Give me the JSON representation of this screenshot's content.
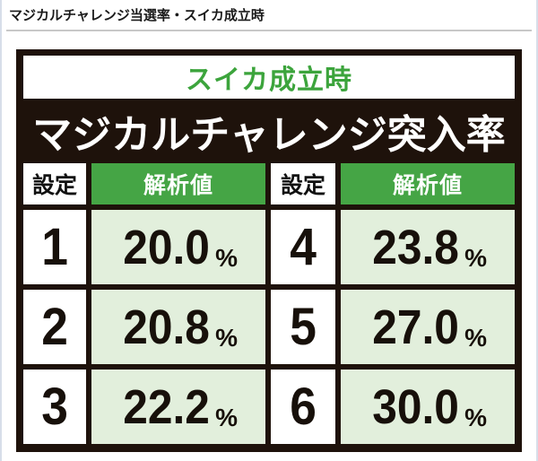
{
  "page": {
    "heading": "マジカルチャレンジ当選率・スイカ成立時"
  },
  "board": {
    "subtitle": "スイカ成立時",
    "title": "マジカルチャレンジ突入率",
    "headers": {
      "setting": "設定",
      "value": "解析値"
    },
    "unit": "%",
    "rows": [
      {
        "left": {
          "setting": "1",
          "value": "20.0"
        },
        "right": {
          "setting": "4",
          "value": "23.8"
        }
      },
      {
        "left": {
          "setting": "2",
          "value": "20.8"
        },
        "right": {
          "setting": "5",
          "value": "27.0"
        }
      },
      {
        "left": {
          "setting": "3",
          "value": "22.2"
        },
        "right": {
          "setting": "6",
          "value": "30.0"
        }
      }
    ]
  },
  "colors": {
    "board_frame": "#1e120b",
    "header_green": "#45a545",
    "subtitle_green": "#3ca43c",
    "value_cell_green": "#e2efdc",
    "heading_rule_gray": "#c8c8c8",
    "page_edge_line": "#d7dee9"
  },
  "chart_data": {
    "type": "table",
    "title": "マジカルチャレンジ突入率",
    "subtitle": "スイカ成立時",
    "columns": [
      "設定",
      "解析値",
      "設定",
      "解析値"
    ],
    "rows": [
      [
        "1",
        "20.0%",
        "4",
        "23.8%"
      ],
      [
        "2",
        "20.8%",
        "5",
        "27.0%"
      ],
      [
        "3",
        "22.2%",
        "6",
        "30.0%"
      ]
    ]
  }
}
